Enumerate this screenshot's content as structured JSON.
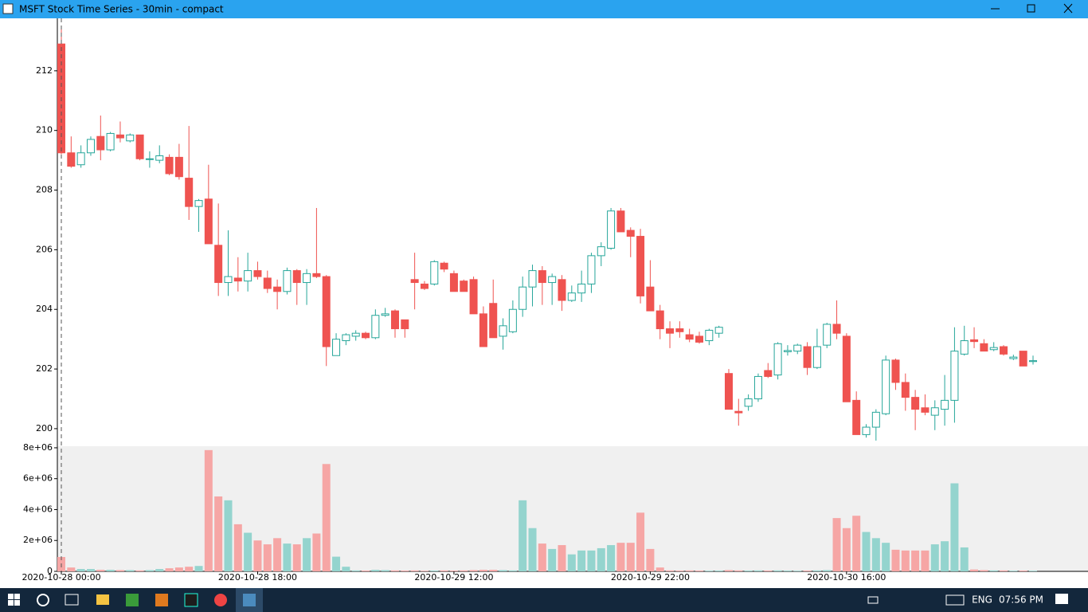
{
  "window": {
    "title": "MSFT Stock Time Series - 30min - compact"
  },
  "taskbar": {
    "language": "ENG",
    "time": "07:56 PM"
  },
  "chart_data": {
    "type": "candlestick",
    "categories": [
      "2020-10-28 00:00",
      null,
      null,
      null,
      null,
      null,
      null,
      null,
      null,
      null,
      null,
      null,
      null,
      null,
      null,
      null,
      null,
      null,
      null,
      null,
      "2020-10-28 18:00",
      null,
      null,
      null,
      null,
      null,
      null,
      null,
      null,
      null,
      null,
      null,
      null,
      null,
      null,
      null,
      null,
      null,
      null,
      null,
      "2020-10-29 12:00",
      null,
      null,
      null,
      null,
      null,
      null,
      null,
      null,
      null,
      null,
      null,
      null,
      null,
      null,
      null,
      null,
      null,
      null,
      null,
      "2020-10-29 22:00",
      null,
      null,
      null,
      null,
      null,
      null,
      null,
      null,
      null,
      null,
      null,
      null,
      null,
      null,
      null,
      null,
      null,
      null,
      null,
      "2020-10-30 16:00",
      null,
      null,
      null,
      null,
      null,
      null,
      null,
      null,
      null,
      null,
      null,
      null,
      null,
      null,
      null,
      null,
      null,
      null,
      null
    ],
    "open": [
      212.9,
      209.25,
      208.85,
      209.25,
      209.8,
      209.35,
      209.85,
      209.65,
      209.85,
      209.05,
      209.0,
      209.1,
      209.1,
      208.4,
      207.45,
      207.7,
      206.15,
      204.9,
      205.05,
      204.95,
      205.3,
      205.05,
      204.75,
      204.6,
      205.3,
      204.9,
      205.2,
      205.1,
      202.45,
      202.95,
      203.1,
      203.2,
      203.05,
      203.8,
      203.95,
      203.65,
      205.0,
      204.85,
      204.85,
      205.55,
      205.2,
      204.95,
      205.0,
      203.85,
      204.2,
      203.1,
      203.25,
      204.0,
      204.75,
      205.3,
      204.9,
      205.0,
      204.3,
      204.55,
      204.85,
      205.8,
      206.05,
      207.3,
      206.65,
      206.45,
      204.75,
      203.95,
      203.35,
      203.35,
      203.15,
      203.1,
      202.95,
      203.2,
      201.85,
      200.58,
      200.75,
      201.0,
      201.95,
      201.8,
      202.58,
      202.6,
      202.75,
      202.05,
      202.8,
      203.5,
      203.1,
      200.95,
      199.8,
      200.05,
      200.5,
      202.3,
      201.55,
      201.05,
      200.7,
      200.45,
      200.65,
      200.95,
      202.5,
      202.98,
      202.85,
      202.65,
      202.75,
      202.35,
      202.6,
      202.25
    ],
    "high": [
      213.5,
      209.8,
      209.5,
      209.8,
      210.5,
      209.95,
      210.3,
      209.9,
      209.85,
      209.3,
      209.5,
      209.2,
      209.55,
      210.15,
      207.7,
      208.85,
      207.55,
      206.65,
      205.75,
      205.9,
      205.6,
      205.3,
      205.0,
      205.4,
      205.35,
      205.35,
      207.4,
      205.15,
      203.2,
      203.2,
      203.3,
      203.25,
      204.0,
      204.05,
      204.0,
      203.65,
      205.9,
      204.95,
      205.65,
      205.6,
      205.3,
      205.0,
      205.1,
      204.1,
      205.0,
      203.7,
      204.3,
      205.1,
      205.5,
      205.45,
      205.2,
      205.15,
      204.8,
      205.3,
      205.9,
      206.25,
      207.4,
      207.4,
      206.75,
      206.7,
      205.65,
      204.15,
      203.6,
      203.6,
      203.35,
      203.25,
      203.35,
      203.45,
      202.0,
      201.0,
      201.15,
      201.85,
      202.2,
      202.9,
      202.8,
      202.85,
      202.9,
      203.35,
      203.55,
      204.3,
      203.2,
      201.25,
      200.15,
      200.65,
      202.45,
      202.35,
      201.85,
      201.3,
      201.15,
      200.95,
      201.8,
      203.4,
      203.45,
      203.4,
      203.0,
      202.9,
      202.8,
      202.48,
      202.6,
      202.45
    ],
    "low": [
      209.2,
      208.75,
      208.75,
      209.15,
      209.0,
      209.3,
      209.6,
      209.6,
      209.0,
      208.75,
      208.9,
      208.5,
      208.35,
      207.0,
      206.6,
      206.2,
      204.45,
      204.45,
      204.6,
      204.6,
      205.0,
      204.55,
      204.0,
      204.5,
      204.15,
      204.15,
      205.05,
      202.1,
      202.45,
      202.8,
      202.95,
      203.0,
      203.0,
      203.75,
      203.05,
      203.05,
      204.0,
      204.65,
      204.8,
      205.25,
      204.6,
      204.6,
      203.85,
      202.75,
      203.05,
      202.65,
      203.2,
      203.75,
      204.1,
      204.15,
      204.15,
      203.95,
      204.25,
      204.25,
      204.55,
      205.45,
      206.0,
      206.6,
      205.75,
      204.2,
      203.95,
      203.0,
      202.7,
      203.05,
      202.9,
      202.85,
      202.8,
      203.05,
      200.65,
      200.1,
      200.6,
      200.9,
      201.7,
      201.65,
      202.45,
      202.5,
      201.8,
      202.0,
      202.7,
      203.0,
      200.9,
      199.8,
      199.7,
      199.6,
      200.45,
      201.3,
      200.6,
      199.95,
      200.45,
      199.95,
      200.1,
      200.2,
      202.45,
      202.7,
      202.6,
      202.6,
      202.45,
      202.3,
      202.1,
      202.15
    ],
    "close": [
      209.25,
      208.8,
      209.25,
      209.7,
      209.35,
      209.9,
      209.75,
      209.85,
      209.05,
      209.05,
      209.15,
      208.55,
      208.45,
      207.45,
      207.65,
      206.2,
      204.9,
      205.1,
      204.95,
      205.3,
      205.1,
      204.7,
      204.6,
      205.3,
      204.9,
      205.2,
      205.1,
      202.75,
      203.0,
      203.15,
      203.2,
      203.05,
      203.8,
      203.85,
      203.35,
      203.35,
      204.9,
      204.7,
      205.6,
      205.35,
      204.6,
      204.6,
      203.85,
      202.75,
      203.05,
      203.45,
      204.0,
      204.75,
      205.3,
      204.9,
      205.1,
      204.3,
      204.55,
      204.85,
      205.8,
      206.1,
      207.3,
      206.6,
      206.45,
      204.45,
      203.95,
      203.35,
      203.2,
      203.25,
      203.0,
      202.9,
      203.3,
      203.4,
      200.65,
      200.53,
      201.0,
      201.75,
      201.75,
      202.85,
      202.62,
      202.8,
      202.05,
      202.75,
      203.5,
      203.2,
      200.9,
      199.8,
      200.05,
      200.55,
      202.3,
      201.55,
      201.05,
      200.65,
      200.55,
      200.7,
      200.95,
      202.6,
      202.95,
      202.92,
      202.6,
      202.72,
      202.5,
      202.4,
      202.1,
      202.28
    ],
    "ylim": [
      199.41,
      213.76
    ],
    "yticks": [
      200,
      202,
      204,
      206,
      208,
      210,
      212
    ],
    "up_color": "#26a69a",
    "down_color": "#ef5350",
    "volume": {
      "values": [
        930000,
        250000,
        150000,
        150000,
        100000,
        100000,
        80000,
        80000,
        60000,
        80000,
        150000,
        200000,
        250000,
        300000,
        350000,
        7850000,
        4850000,
        4600000,
        3050000,
        2500000,
        2000000,
        1750000,
        2150000,
        1800000,
        1750000,
        2150000,
        2450000,
        6950000,
        950000,
        300000,
        60000,
        50000,
        100000,
        80000,
        60000,
        50000,
        60000,
        40000,
        50000,
        60000,
        50000,
        60000,
        80000,
        100000,
        100000,
        80000,
        60000,
        4600000,
        2800000,
        1800000,
        1450000,
        1700000,
        1100000,
        1350000,
        1350000,
        1500000,
        1700000,
        1850000,
        1850000,
        3800000,
        1450000,
        250000,
        60000,
        50000,
        60000,
        50000,
        40000,
        50000,
        80000,
        60000,
        50000,
        60000,
        50000,
        60000,
        50000,
        40000,
        50000,
        60000,
        80000,
        3450000,
        2800000,
        3600000,
        2550000,
        2150000,
        1850000,
        1400000,
        1350000,
        1350000,
        1350000,
        1750000,
        1950000,
        5700000,
        1550000,
        120000,
        80000,
        60000,
        60000,
        40000,
        50000,
        40000
      ],
      "ylim": [
        0,
        8100000
      ],
      "yticks": [
        0,
        {
          "value": 2000000,
          "label": "2e+06"
        },
        {
          "value": 4000000,
          "label": "4e+06"
        },
        {
          "value": 6000000,
          "label": "6e+06"
        },
        {
          "value": 8000000,
          "label": "8e+06"
        }
      ],
      "up_color": "#94d4ce",
      "down_color": "#f6a6a5"
    }
  }
}
